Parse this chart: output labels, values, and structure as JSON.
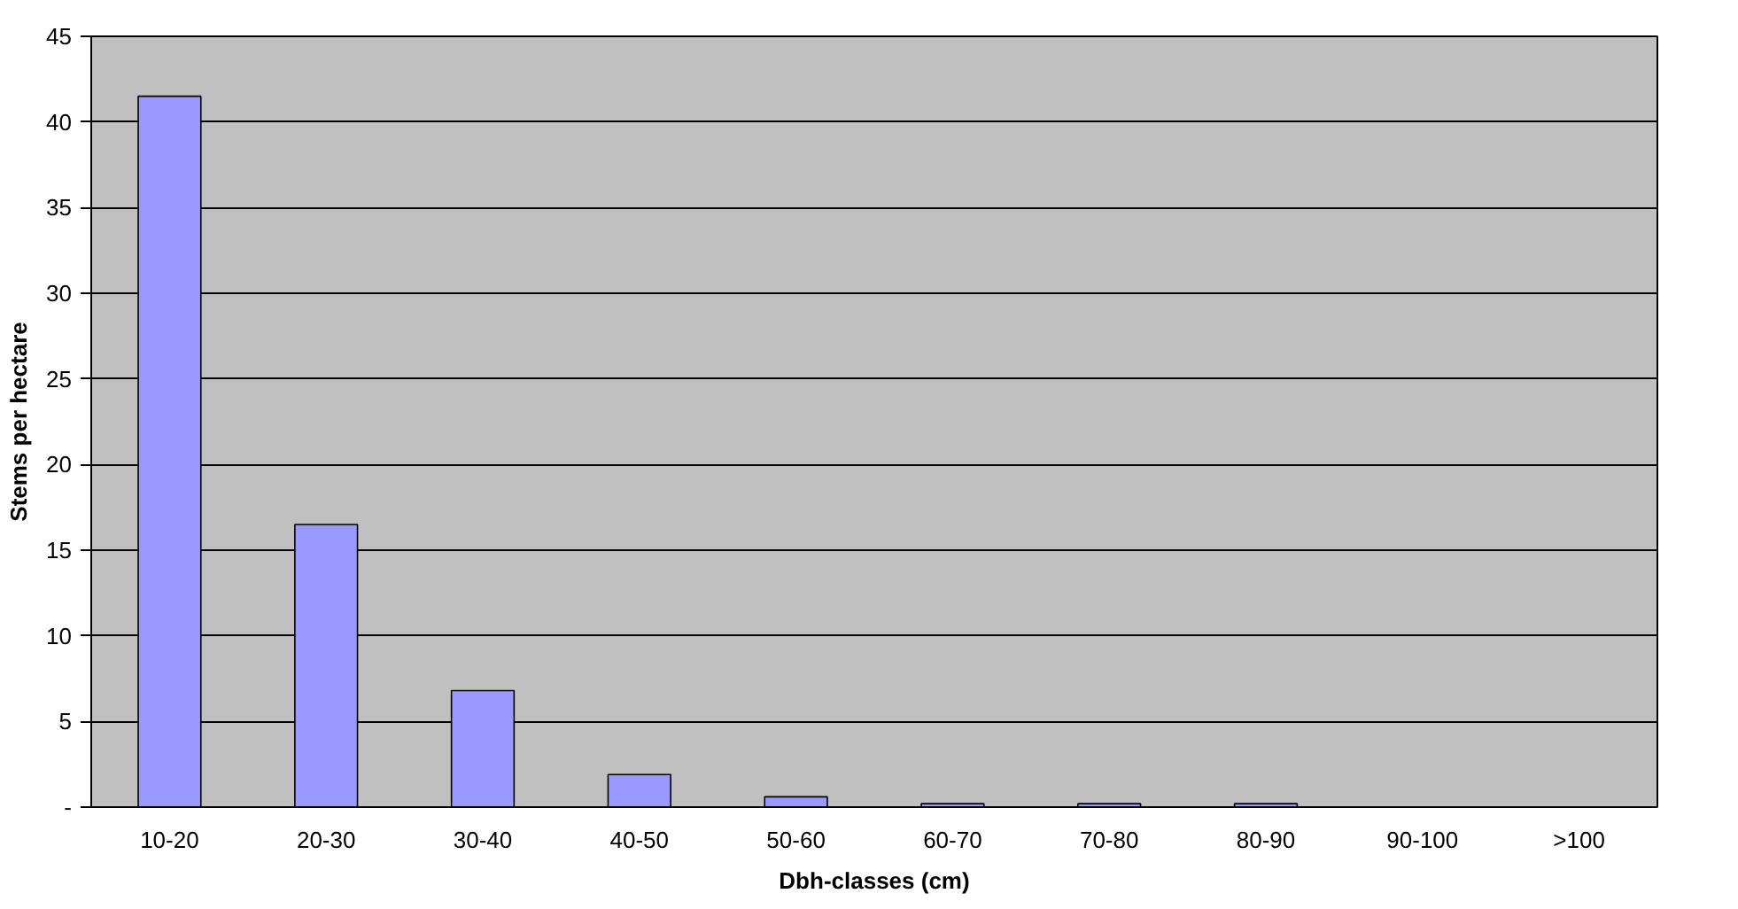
{
  "chart_data": {
    "type": "bar",
    "xlabel": "Dbh-classes (cm)",
    "ylabel": "Stems per hectare",
    "categories": [
      "10-20",
      "20-30",
      "30-40",
      "40-50",
      "50-60",
      "60-70",
      "70-80",
      "80-90",
      "90-100",
      ">100"
    ],
    "values": [
      41.5,
      16.5,
      6.8,
      1.9,
      0.6,
      0.2,
      0.2,
      0.2,
      0,
      0
    ],
    "color": "#9999ff",
    "ylim": [
      0,
      45
    ],
    "yticks": [
      {
        "value": 0,
        "label": "-"
      },
      5,
      10,
      15,
      20,
      25,
      30,
      35,
      40,
      45
    ],
    "grid": "y"
  }
}
